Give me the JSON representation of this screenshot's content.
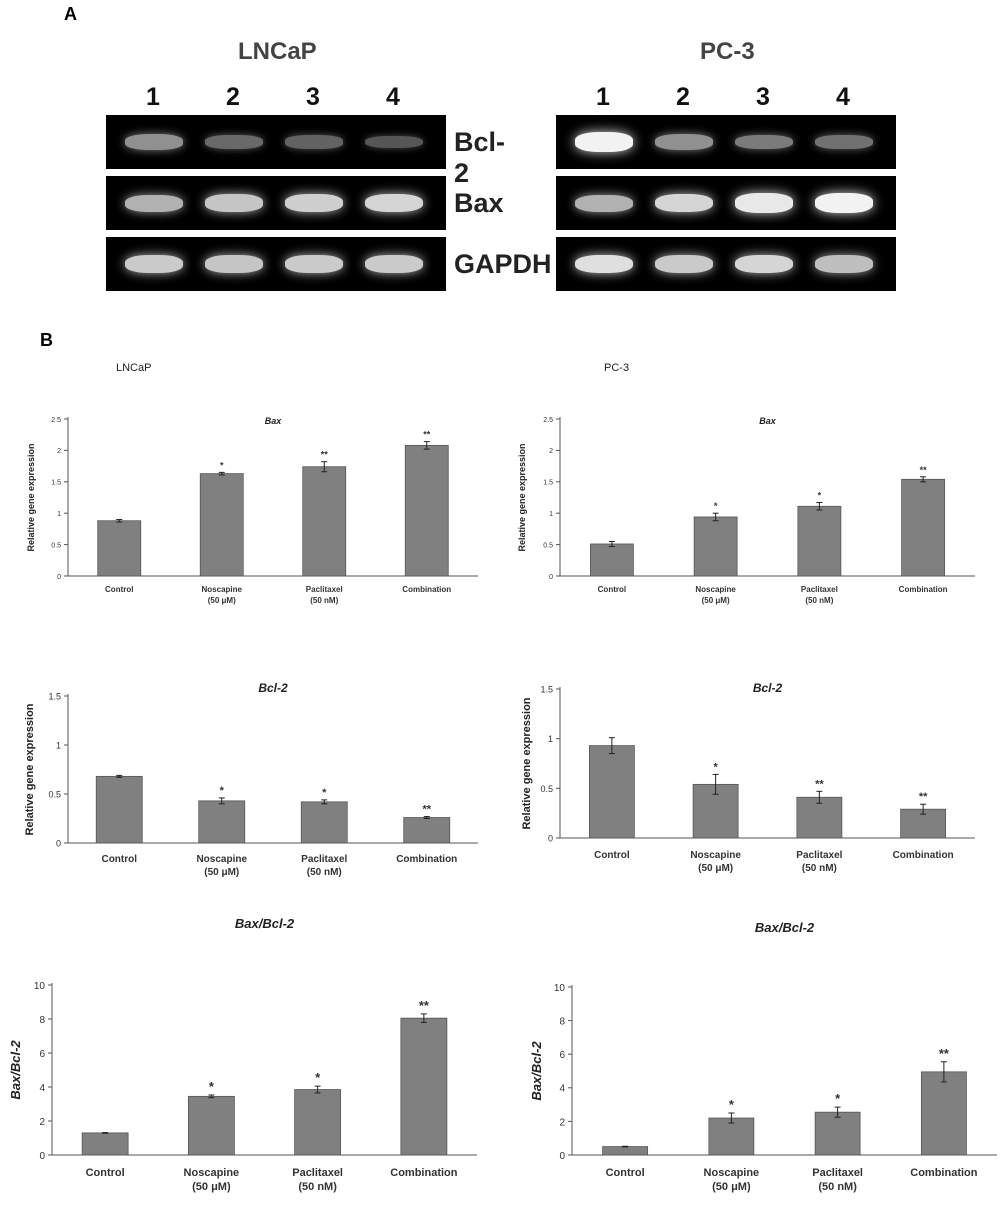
{
  "panels": {
    "a": "A",
    "b": "B"
  },
  "gel": {
    "lanes": [
      "1",
      "2",
      "3",
      "4"
    ],
    "blocks": [
      {
        "title": "LNCaP",
        "rows": [
          {
            "label": "Bcl-2",
            "intensity": [
              0.55,
              0.35,
              0.32,
              0.25
            ]
          },
          {
            "label": "Bax",
            "intensity": [
              0.7,
              0.78,
              0.82,
              0.85
            ]
          },
          {
            "label": "GAPDH",
            "intensity": [
              0.8,
              0.78,
              0.8,
              0.8
            ]
          }
        ]
      },
      {
        "title": "PC-3",
        "rows": [
          {
            "label": "",
            "intensity": [
              0.95,
              0.55,
              0.45,
              0.4
            ]
          },
          {
            "label": "",
            "intensity": [
              0.7,
              0.85,
              0.92,
              0.95
            ]
          },
          {
            "label": "",
            "intensity": [
              0.88,
              0.8,
              0.85,
              0.75
            ]
          }
        ]
      }
    ]
  },
  "cell_labels": [
    "LNCaP",
    "PC-3"
  ],
  "chart_data": [
    {
      "type": "bar",
      "title": "Bax",
      "ylabel": "Relative gene expression",
      "categories": [
        "Control",
        "Noscapine\n(50 μM)",
        "Paclitaxel\n(50 nM)",
        "Combination"
      ],
      "values": [
        0.88,
        1.63,
        1.74,
        2.08
      ],
      "errors": [
        0.02,
        0.02,
        0.08,
        0.06
      ],
      "annotations": [
        "",
        "*",
        "**",
        "**"
      ],
      "ylim": [
        0,
        2.5
      ],
      "yticks": [
        "0",
        "0.5",
        "1",
        "1.5",
        "2",
        "2.5"
      ],
      "bar_color": "#808080"
    },
    {
      "type": "bar",
      "title": "Bax",
      "ylabel": "Relative gene expression",
      "categories": [
        "Control",
        "Noscapine\n(50 μM)",
        "Paclitaxel\n(50 nM)",
        "Combination"
      ],
      "values": [
        0.51,
        0.94,
        1.11,
        1.54
      ],
      "errors": [
        0.04,
        0.06,
        0.06,
        0.04
      ],
      "annotations": [
        "",
        "*",
        "*",
        "**"
      ],
      "ylim": [
        0,
        2.5
      ],
      "yticks": [
        "0",
        "0.5",
        "1",
        "1.5",
        "2",
        "2.5"
      ],
      "bar_color": "#808080"
    },
    {
      "type": "bar",
      "title": "Bcl-2",
      "ylabel": "Relative gene expression",
      "categories": [
        "Control",
        "Noscapine\n(50 μM)",
        "Paclitaxel\n(50 nM)",
        "Combination"
      ],
      "values": [
        0.68,
        0.43,
        0.42,
        0.26
      ],
      "errors": [
        0.01,
        0.03,
        0.02,
        0.01
      ],
      "annotations": [
        "",
        "*",
        "*",
        "**"
      ],
      "ylim": [
        0,
        1.5
      ],
      "yticks": [
        "0",
        "0.5",
        "1",
        "1.5"
      ],
      "bar_color": "#808080"
    },
    {
      "type": "bar",
      "title": "Bcl-2",
      "ylabel": "Relative gene expression",
      "categories": [
        "Control",
        "Noscapine\n(50 μM)",
        "Paclitaxel\n(50 nM)",
        "Combination"
      ],
      "values": [
        0.93,
        0.54,
        0.41,
        0.29
      ],
      "errors": [
        0.08,
        0.1,
        0.06,
        0.05
      ],
      "annotations": [
        "",
        "*",
        "**",
        "**"
      ],
      "ylim": [
        0,
        1.5
      ],
      "yticks": [
        "0",
        "0.5",
        "1",
        "1.5"
      ],
      "bar_color": "#808080"
    },
    {
      "type": "bar",
      "title": "Bax/Bcl-2",
      "ylabel": "Bax/Bcl-2",
      "categories": [
        "Control",
        "Noscapine\n(50 μM)",
        "Paclitaxel\n(50 nM)",
        "Combination"
      ],
      "values": [
        1.3,
        3.45,
        3.85,
        8.05
      ],
      "errors": [
        0.02,
        0.08,
        0.2,
        0.25
      ],
      "annotations": [
        "",
        "*",
        "*",
        "**"
      ],
      "ylim": [
        0,
        10
      ],
      "yticks": [
        "0",
        "2",
        "4",
        "6",
        "8",
        "10"
      ],
      "bar_color": "#808080"
    },
    {
      "type": "bar",
      "title": "Bax/Bcl-2",
      "ylabel": "Bax/Bcl-2",
      "categories": [
        "Control",
        "Noscapine\n(50 μM)",
        "Paclitaxel\n(50 nM)",
        "Combination"
      ],
      "values": [
        0.5,
        2.2,
        2.55,
        4.95
      ],
      "errors": [
        0.02,
        0.3,
        0.3,
        0.6
      ],
      "annotations": [
        "",
        "*",
        "*",
        "**"
      ],
      "ylim": [
        0,
        10
      ],
      "yticks": [
        "0",
        "2",
        "4",
        "6",
        "8",
        "10"
      ],
      "bar_color": "#808080"
    }
  ]
}
